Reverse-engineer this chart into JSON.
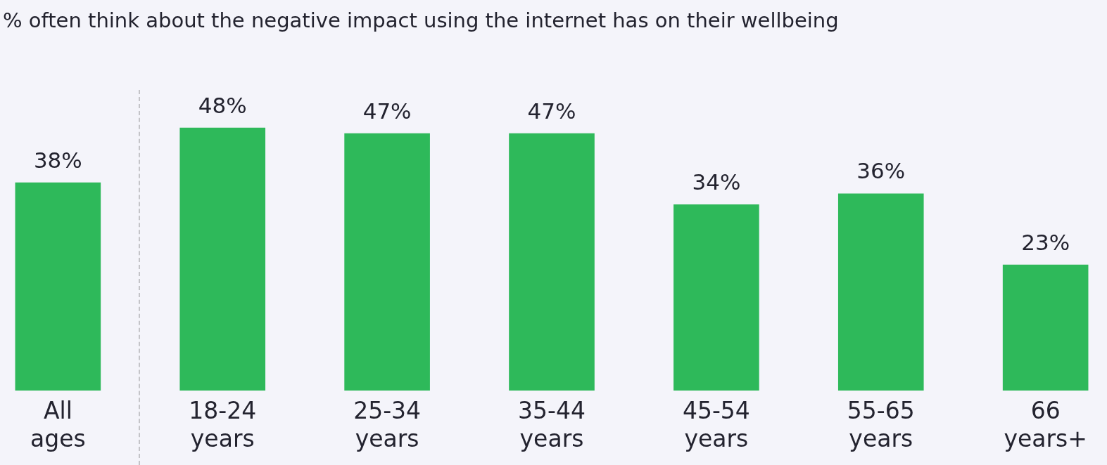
{
  "chart_data": {
    "type": "bar",
    "title": "% often think about the negative impact using the internet has on their wellbeing",
    "categories": [
      "All ages",
      "18-24 years",
      "25-34 years",
      "35-44 years",
      "45-54 years",
      "55-65 years",
      "66 years+"
    ],
    "values": [
      38,
      48,
      47,
      47,
      34,
      36,
      23
    ],
    "value_labels": [
      "38%",
      "48%",
      "47%",
      "47%",
      "34%",
      "36%",
      "23%"
    ],
    "color": "#2eb95a"
  }
}
